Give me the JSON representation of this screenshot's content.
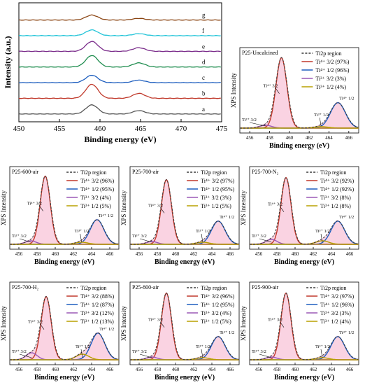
{
  "colors": {
    "envelope": "#3a3a3a",
    "ti4_32": "#c0392b",
    "ti4_12": "#1f5fbf",
    "ti3_32": "#9b59b6",
    "ti3_12": "#b8a000",
    "raw": "#f06fa0"
  },
  "chart_data": [
    {
      "type": "line",
      "xlabel": "Binding energy (eV)",
      "ylabel": "Intensity (a.u.)",
      "xlim": [
        450,
        475
      ],
      "xticks": [
        450,
        455,
        460,
        465,
        470,
        475
      ],
      "grid": false,
      "series": [
        {
          "name": "a",
          "color": "#555555",
          "peaks": [
            [
              459.0,
              0.55
            ],
            [
              464.8,
              0.2
            ]
          ]
        },
        {
          "name": "b",
          "color": "#c0392b",
          "peaks": [
            [
              459.0,
              0.85
            ],
            [
              464.8,
              0.3
            ]
          ]
        },
        {
          "name": "c",
          "color": "#1f5fbf",
          "peaks": [
            [
              459.0,
              0.45
            ],
            [
              464.8,
              0.15
            ]
          ]
        },
        {
          "name": "d",
          "color": "#1e8c4e",
          "peaks": [
            [
              459.0,
              0.7
            ],
            [
              464.8,
              0.25
            ]
          ]
        },
        {
          "name": "e",
          "color": "#7b2d8b",
          "peaks": [
            [
              459.0,
              0.6
            ],
            [
              464.8,
              0.22
            ]
          ]
        },
        {
          "name": "f",
          "color": "#22c4d8",
          "peaks": [
            [
              459.0,
              0.35
            ],
            [
              464.8,
              0.12
            ]
          ]
        },
        {
          "name": "g",
          "color": "#8b4513",
          "peaks": [
            [
              459.0,
              0.3
            ],
            [
              464.8,
              0.1
            ]
          ]
        }
      ]
    },
    {
      "type": "line",
      "panel": "P25-Uncalcined",
      "xlabel": "Binding energy (eV)",
      "ylabel": "XPS Intensity",
      "xlim": [
        455,
        467
      ],
      "xticks": [
        456,
        458,
        460,
        462,
        464,
        466
      ],
      "legend": [
        "Ti2p region",
        "Ti⁴⁺ 3/2 (97%)",
        "Ti⁴⁺ 1/2 (96%)",
        "Ti³⁺ 3/2 (3%)",
        "Ti³⁺ 1/2 (4%)"
      ],
      "peaks": {
        "ti4_32": [
          459.2,
          0.97
        ],
        "ti4_12": [
          464.9,
          0.35
        ],
        "ti3_32": [
          457.6,
          0.04
        ],
        "ti3_12": [
          463.2,
          0.02
        ]
      },
      "annotations": [
        "Ti⁴⁺ 3/2",
        "Ti³⁺ 3/2",
        "Ti³⁺ 1/2",
        "Ti⁴⁺ 1/2"
      ]
    },
    {
      "type": "line",
      "panel": "P25-600-air",
      "xlabel": "Binding energy (eV)",
      "ylabel": "XPS Intensity",
      "xlim": [
        455,
        467
      ],
      "xticks": [
        456,
        458,
        460,
        462,
        464,
        466
      ],
      "legend": [
        "Ti2p region",
        "Ti⁴⁺ 3/2 (96%)",
        "Ti⁴⁺ 1/2 (95%)",
        "Ti³⁺ 3/2 (4%)",
        "Ti³⁺ 1/2 (5%)"
      ],
      "peaks": {
        "ti4_32": [
          458.9,
          0.97
        ],
        "ti4_12": [
          464.6,
          0.35
        ],
        "ti3_32": [
          457.3,
          0.05
        ],
        "ti3_12": [
          462.9,
          0.03
        ]
      },
      "annotations": [
        "Ti⁴⁺ 3/2",
        "Ti³⁺ 3/2",
        "Ti³⁺ 1/2",
        "Ti⁴⁺ 1/2"
      ]
    },
    {
      "type": "line",
      "panel": "P25-700-air",
      "xlabel": "Binding energy (eV)",
      "ylabel": "XPS Intensity",
      "xlim": [
        455,
        467
      ],
      "xticks": [
        456,
        458,
        460,
        462,
        464,
        466
      ],
      "legend": [
        "Ti2p region",
        "Ti⁴⁺ 3/2 (97%)",
        "Ti⁴⁺ 1/2 (95%)",
        "Ti³⁺ 3/2 (3%)",
        "Ti³⁺ 1/2 (5%)"
      ],
      "peaks": {
        "ti4_32": [
          459.0,
          0.92
        ],
        "ti4_12": [
          464.7,
          0.33
        ],
        "ti3_32": [
          457.4,
          0.04
        ],
        "ti3_12": [
          463.0,
          0.03
        ]
      },
      "annotations": [
        "Ti⁴⁺ 3/2",
        "Ti³⁺ 3/2",
        "Ti³⁺ 1/2",
        "Ti⁴⁺ 1/2"
      ]
    },
    {
      "type": "line",
      "panel": "P25-700-N₂",
      "xlabel": "Binding energy (eV)",
      "ylabel": "XPS Intensity",
      "xlim": [
        455,
        467
      ],
      "xticks": [
        456,
        458,
        460,
        462,
        464,
        466
      ],
      "legend": [
        "Ti2p region",
        "Ti⁴⁺ 3/2 (92%)",
        "Ti⁴⁺ 1/2 (92%)",
        "Ti³⁺ 3/2 (8%)",
        "Ti³⁺ 1/2 (8%)"
      ],
      "peaks": {
        "ti4_32": [
          459.0,
          0.95
        ],
        "ti4_12": [
          464.7,
          0.33
        ],
        "ti3_32": [
          457.4,
          0.07
        ],
        "ti3_12": [
          463.0,
          0.05
        ]
      },
      "annotations": [
        "Ti⁴⁺ 3/2",
        "Ti³⁺ 3/2",
        "Ti³⁺ 1/2",
        "Ti⁴⁺ 1/2"
      ]
    },
    {
      "type": "line",
      "panel": "P25-700-H₂",
      "xlabel": "Binding energy (eV)",
      "ylabel": "XPS Intensity",
      "xlim": [
        455,
        467
      ],
      "xticks": [
        456,
        458,
        460,
        462,
        464,
        466
      ],
      "legend": [
        "Ti2p region",
        "Ti⁴⁺ 3/2 (88%)",
        "Ti⁴⁺ 1/2 (87%)",
        "Ti³⁺ 3/2 (12%)",
        "Ti³⁺ 1/2 (13%)"
      ],
      "peaks": {
        "ti4_32": [
          459.0,
          0.9
        ],
        "ti4_12": [
          464.7,
          0.38
        ],
        "ti3_32": [
          457.4,
          0.1
        ],
        "ti3_12": [
          463.0,
          0.08
        ]
      },
      "annotations": [
        "Ti⁴⁺ 3/2",
        "Ti³⁺ 3/2",
        "Ti³⁺ 1/2",
        "Ti⁴⁺ 1/2"
      ]
    },
    {
      "type": "line",
      "panel": "P25-800-air",
      "xlabel": "Binding energy (eV)",
      "ylabel": "XPS Intensity",
      "xlim": [
        455,
        467
      ],
      "xticks": [
        456,
        458,
        460,
        462,
        464,
        466
      ],
      "legend": [
        "Ti2p region",
        "Ti⁴⁺ 3/2 (96%)",
        "Ti⁴⁺ 1/2 (95%)",
        "Ti³⁺ 3/2 (4%)",
        "Ti³⁺ 1/2 (5%)"
      ],
      "peaks": {
        "ti4_32": [
          459.0,
          0.95
        ],
        "ti4_12": [
          464.7,
          0.33
        ],
        "ti3_32": [
          457.4,
          0.04
        ],
        "ti3_12": [
          463.0,
          0.03
        ]
      },
      "annotations": [
        "Ti⁴⁺ 3/2",
        "Ti³⁺ 3/2",
        "Ti³⁺ 1/2",
        "Ti⁴⁺ 1/2"
      ]
    },
    {
      "type": "line",
      "panel": "P25-900-air",
      "xlabel": "Binding energy (eV)",
      "ylabel": "XPS Intensity",
      "xlim": [
        455,
        467
      ],
      "xticks": [
        456,
        458,
        460,
        462,
        464,
        466
      ],
      "legend": [
        "Ti2p region",
        "Ti⁴⁺ 3/2 (97%)",
        "Ti⁴⁺ 1/2 (96%)",
        "Ti³⁺ 3/2 (3%)",
        "Ti³⁺ 1/2 (4%)"
      ],
      "peaks": {
        "ti4_32": [
          459.0,
          0.95
        ],
        "ti4_12": [
          464.7,
          0.33
        ],
        "ti3_32": [
          457.4,
          0.04
        ],
        "ti3_12": [
          463.0,
          0.03
        ]
      },
      "annotations": [
        "Ti⁴⁺ 3/2",
        "Ti³⁺ 3/2",
        "Ti³⁺ 1/2",
        "Ti⁴⁺ 1/2"
      ]
    }
  ]
}
